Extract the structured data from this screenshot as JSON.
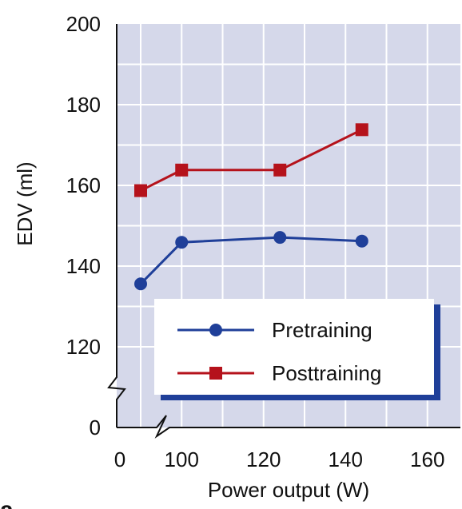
{
  "chart_data": {
    "type": "line",
    "xlabel": "Power output (W)",
    "ylabel": "EDV (ml)",
    "panel_label": "a",
    "xlim": [
      0,
      170
    ],
    "ylim_upper": [
      110,
      200
    ],
    "axis_break": true,
    "xticks": [
      {
        "value": 0,
        "label": "0"
      },
      {
        "value": 100,
        "label": "100"
      },
      {
        "value": 120,
        "label": "120"
      },
      {
        "value": 140,
        "label": "140"
      },
      {
        "value": 160,
        "label": "160"
      }
    ],
    "yticks": [
      {
        "value": 200,
        "label": "200"
      },
      {
        "value": 180,
        "label": "180"
      },
      {
        "value": 160,
        "label": "160"
      },
      {
        "value": 140,
        "label": "140"
      },
      {
        "value": 120,
        "label": "120"
      },
      {
        "value": 0,
        "label": "0"
      }
    ],
    "grid": true,
    "legend_position": "bottom-right",
    "series": [
      {
        "name": "Pretraining",
        "color": "#1f3f99",
        "marker": "circle",
        "x": [
          90,
          100,
          124,
          144
        ],
        "y": [
          135.6,
          145.9,
          147.1,
          146.2
        ]
      },
      {
        "name": "Posttraining",
        "color": "#b5121b",
        "marker": "square",
        "x": [
          90,
          100,
          124,
          144
        ],
        "y": [
          158.7,
          163.8,
          163.8,
          173.8
        ]
      }
    ]
  },
  "colors": {
    "plot_background": "#d5d8ea",
    "grid": "#ffffff",
    "legend_shadow": "#1f3f99"
  }
}
